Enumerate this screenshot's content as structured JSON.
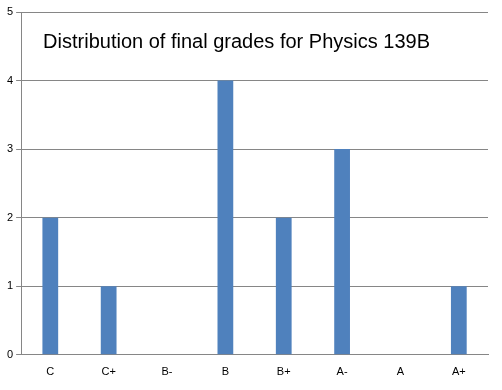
{
  "chart_data": {
    "type": "bar",
    "title": "Distribution of final grades for Physics 139B",
    "categories": [
      "C",
      "C+",
      "B-",
      "B",
      "B+",
      "A-",
      "A",
      "A+"
    ],
    "values": [
      2,
      1,
      0,
      4,
      2,
      3,
      0,
      1
    ],
    "color": "#4f81bd",
    "ylim": [
      0,
      5
    ],
    "yticks": [
      0,
      1,
      2,
      3,
      4,
      5
    ],
    "grid": true
  }
}
